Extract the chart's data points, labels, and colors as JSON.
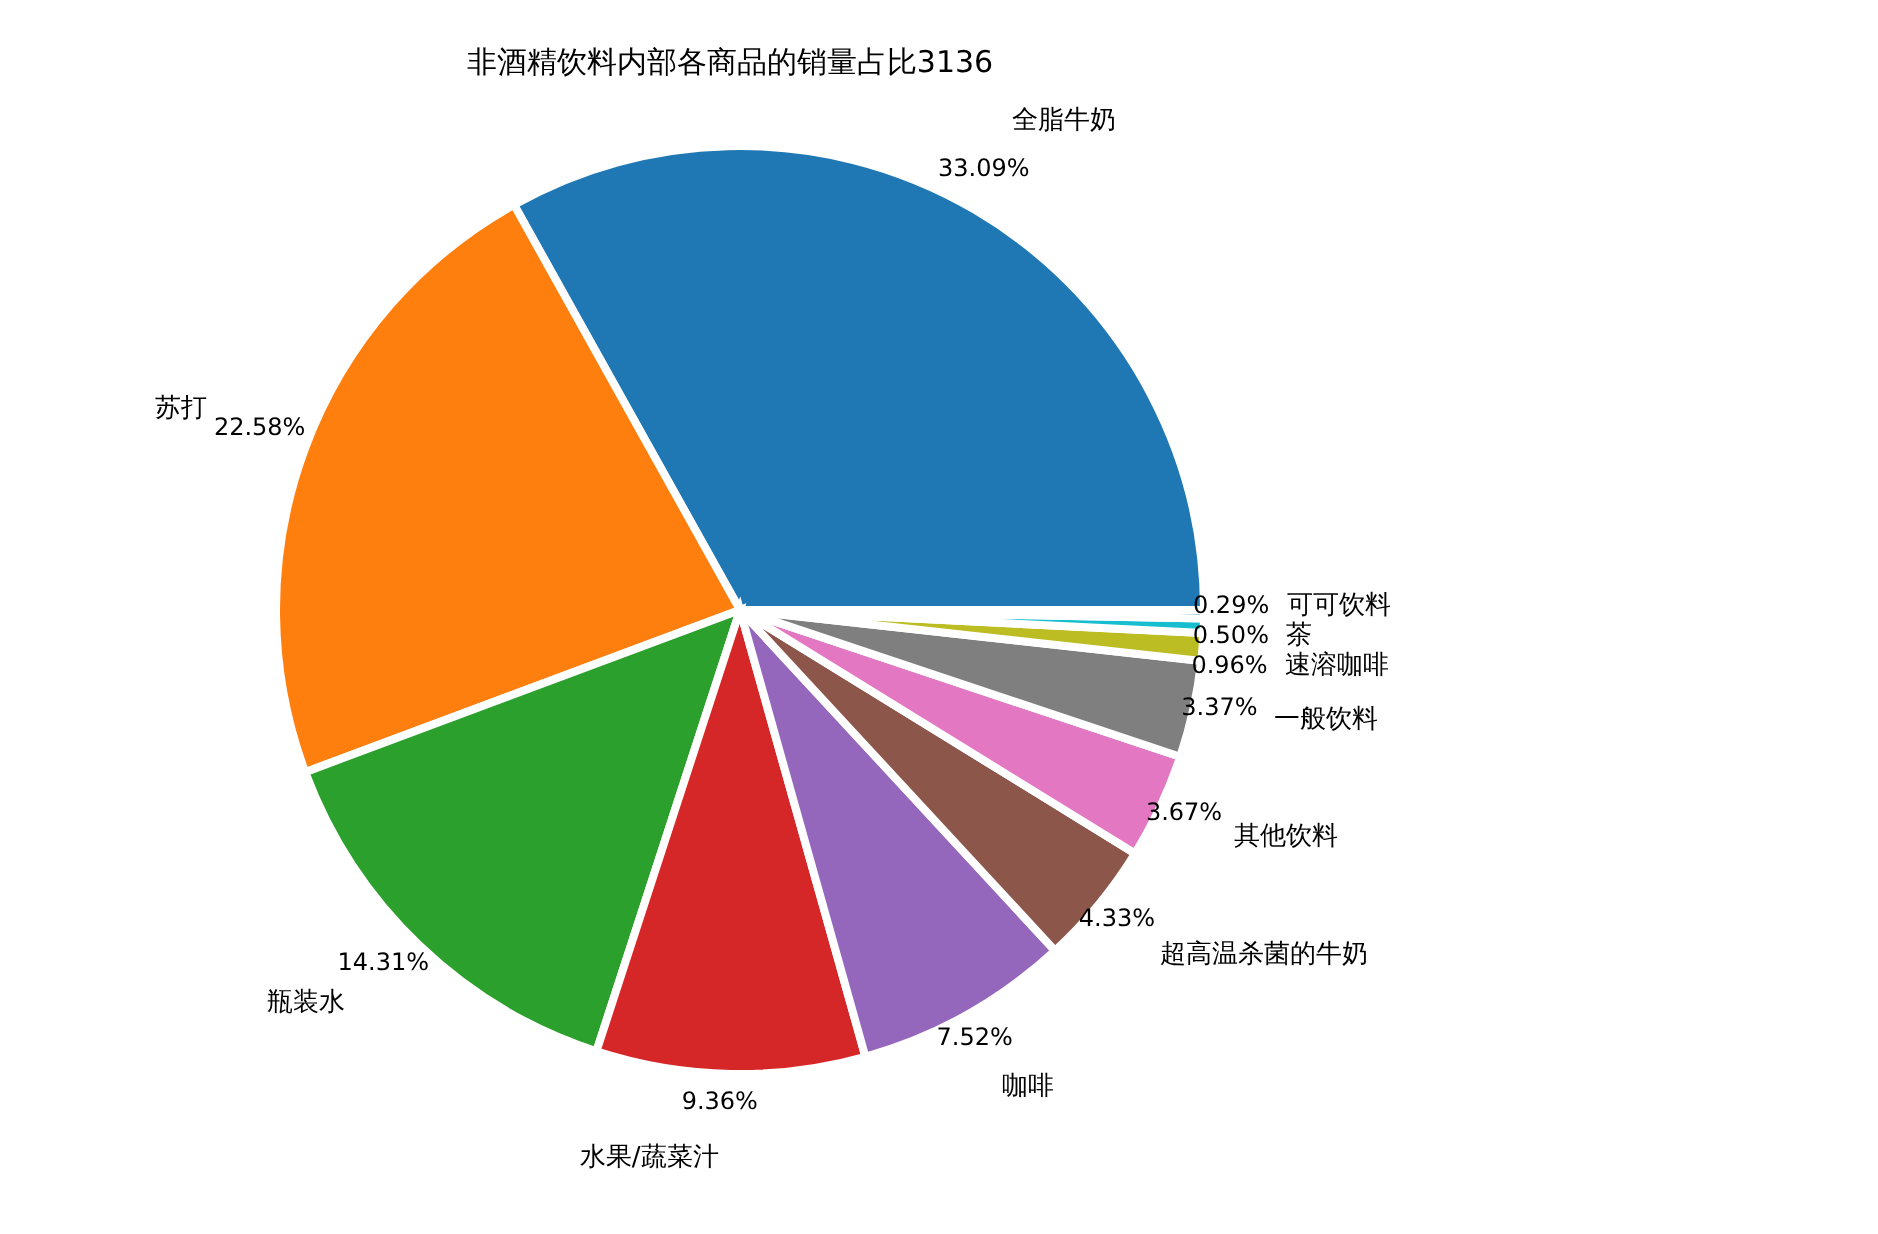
{
  "chart_data": {
    "type": "pie",
    "title": "非酒精饮料内部各商品的销量占比3136",
    "categories": [
      "全脂牛奶",
      "苏打",
      "瓶装水",
      "水果/蔬菜汁",
      "咖啡",
      "超高温杀菌的牛奶",
      "其他饮料",
      "一般饮料",
      "速溶咖啡",
      "茶",
      "可可饮料"
    ],
    "values": [
      33.09,
      22.58,
      14.31,
      9.36,
      7.52,
      4.33,
      3.67,
      3.37,
      0.96,
      0.5,
      0.29
    ],
    "value_labels": [
      "33.09%",
      "22.58%",
      "14.31%",
      "9.36%",
      "7.52%",
      "4.33%",
      "3.67%",
      "3.37%",
      "0.96%",
      "0.50%",
      "0.29%"
    ],
    "colors": [
      "#1f77b4",
      "#ff7f0e",
      "#2ca02c",
      "#d62728",
      "#9467bd",
      "#8c564b",
      "#e377c2",
      "#7f7f7f",
      "#bcbd22",
      "#17becf",
      "#1f77b4"
    ],
    "legend": false
  }
}
